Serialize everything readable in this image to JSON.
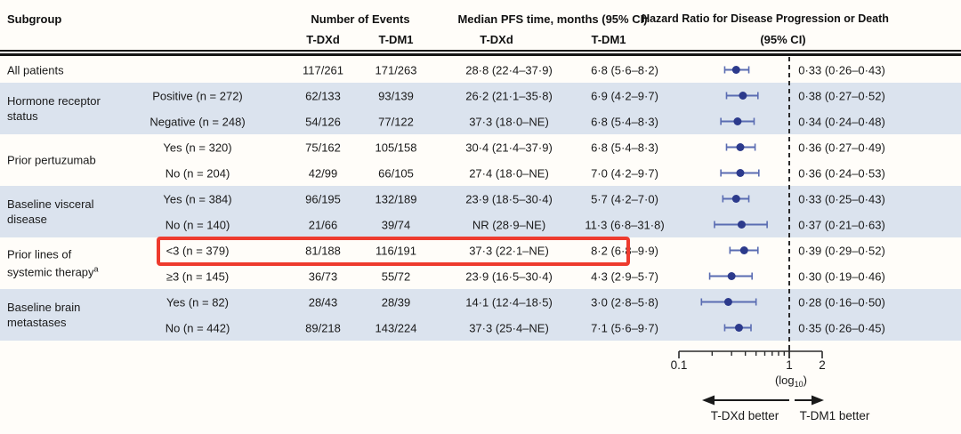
{
  "header": {
    "subgroup": "Subgroup",
    "events": {
      "title": "Number of Events",
      "col1": "T-DXd",
      "col2": "T-DM1"
    },
    "median": {
      "title": "Median PFS time, months (95% CI)",
      "col1": "T-DXd",
      "col2": "T-DM1"
    },
    "hazard": {
      "line1": "Hazard Ratio for Disease Progression or Death",
      "line2": "(95% CI)"
    }
  },
  "colors": {
    "stripe": "#dbe3ee",
    "marker": "#2c3a8c",
    "whisker": "#5a6cb2",
    "reference_line": "#2b2b2b",
    "highlight": "#ee3b2e",
    "axis": "#2b2b2b"
  },
  "chart_data": {
    "type": "forest",
    "title": "Hazard Ratio for Disease Progression or Death (95% CI)",
    "x_axis": {
      "scale": "log10",
      "range": [
        0.1,
        2
      ],
      "ticks": [
        "0.1",
        "1",
        "2"
      ],
      "tick_values": [
        0.1,
        1,
        2
      ],
      "minor_ticks": [
        0.2,
        0.3,
        0.4,
        0.5,
        0.6,
        0.7,
        0.8,
        0.9
      ],
      "reference_line": 1,
      "label_prefix": "(log",
      "label_sub": "10",
      "label_suffix": ")"
    },
    "legend": {
      "left": "T-DXd better",
      "right": "T-DM1 better"
    },
    "highlight_box": {
      "row": "<3 (n = 379)",
      "color": "#ee3b2e"
    },
    "groups": [
      {
        "label_lines": [
          "All patients"
        ],
        "rows": [
          {
            "level": "",
            "events_tdxd": "117/261",
            "events_tdm1": "171/263",
            "median_tdxd": "28·8 (22·4–37·9)",
            "median_tdm1": "6·8 (5·6–8·2)",
            "hr_ci": "0·33 (0·26–0·43)",
            "hr": 0.33,
            "lo": 0.26,
            "hi": 0.43
          }
        ]
      },
      {
        "label_lines": [
          "Hormone receptor",
          "status"
        ],
        "rows": [
          {
            "level": "Positive (n = 272)",
            "events_tdxd": "62/133",
            "events_tdm1": "93/139",
            "median_tdxd": "26·2 (21·1–35·8)",
            "median_tdm1": "6·9 (4·2–9·7)",
            "hr_ci": "0·38 (0·27–0·52)",
            "hr": 0.38,
            "lo": 0.27,
            "hi": 0.52
          },
          {
            "level": "Negative (n = 248)",
            "events_tdxd": "54/126",
            "events_tdm1": "77/122",
            "median_tdxd": "37·3 (18·0–NE)",
            "median_tdm1": "6·8 (5·4–8·3)",
            "hr_ci": "0·34 (0·24–0·48)",
            "hr": 0.34,
            "lo": 0.24,
            "hi": 0.48
          }
        ]
      },
      {
        "label_lines": [
          "Prior pertuzumab"
        ],
        "rows": [
          {
            "level": "Yes (n = 320)",
            "events_tdxd": "75/162",
            "events_tdm1": "105/158",
            "median_tdxd": "30·4 (21·4–37·9)",
            "median_tdm1": "6·8 (5·4–8·3)",
            "hr_ci": "0·36 (0·27–0·49)",
            "hr": 0.36,
            "lo": 0.27,
            "hi": 0.49
          },
          {
            "level": "No (n = 204)",
            "events_tdxd": "42/99",
            "events_tdm1": "66/105",
            "median_tdxd": "27·4 (18·0–NE)",
            "median_tdm1": "7·0 (4·2–9·7)",
            "hr_ci": "0·36 (0·24–0·53)",
            "hr": 0.36,
            "lo": 0.24,
            "hi": 0.53
          }
        ]
      },
      {
        "label_lines": [
          "Baseline visceral",
          "disease"
        ],
        "rows": [
          {
            "level": "Yes (n = 384)",
            "events_tdxd": "96/195",
            "events_tdm1": "132/189",
            "median_tdxd": "23·9 (18·5–30·4)",
            "median_tdm1": "5·7 (4·2–7·0)",
            "hr_ci": "0·33 (0·25–0·43)",
            "hr": 0.33,
            "lo": 0.25,
            "hi": 0.43
          },
          {
            "level": "No (n = 140)",
            "events_tdxd": "21/66",
            "events_tdm1": "39/74",
            "median_tdxd": "NR (28·9–NE)",
            "median_tdm1": "11·3 (6·8–31·8)",
            "hr_ci": "0·37 (0·21–0·63)",
            "hr": 0.37,
            "lo": 0.21,
            "hi": 0.63
          }
        ]
      },
      {
        "label_lines": [
          "Prior lines of",
          "systemic therapy"
        ],
        "label_sup": "a",
        "rows": [
          {
            "level": "<3 (n = 379)",
            "events_tdxd": "81/188",
            "events_tdm1": "116/191",
            "median_tdxd": "37·3 (22·1–NE)",
            "median_tdm1": "8·2 (6·8–9·9)",
            "hr_ci": "0·39 (0·29–0·52)",
            "hr": 0.39,
            "lo": 0.29,
            "hi": 0.52,
            "highlight": true
          },
          {
            "level": "≥3 (n = 145)",
            "events_tdxd": "36/73",
            "events_tdm1": "55/72",
            "median_tdxd": "23·9 (16·5–30·4)",
            "median_tdm1": "4·3 (2·9–5·7)",
            "hr_ci": "0·30 (0·19–0·46)",
            "hr": 0.3,
            "lo": 0.19,
            "hi": 0.46
          }
        ]
      },
      {
        "label_lines": [
          "Baseline brain",
          "metastases"
        ],
        "rows": [
          {
            "level": "Yes (n = 82)",
            "events_tdxd": "28/43",
            "events_tdm1": "28/39",
            "median_tdxd": "14·1 (12·4–18·5)",
            "median_tdm1": "3·0 (2·8–5·8)",
            "hr_ci": "0·28 (0·16–0·50)",
            "hr": 0.28,
            "lo": 0.16,
            "hi": 0.5
          },
          {
            "level": "No (n = 442)",
            "events_tdxd": "89/218",
            "events_tdm1": "143/224",
            "median_tdxd": "37·3 (25·4–NE)",
            "median_tdm1": "7·1 (5·6–9·7)",
            "hr_ci": "0·35 (0·26–0·45)",
            "hr": 0.35,
            "lo": 0.26,
            "hi": 0.45
          }
        ]
      }
    ]
  }
}
